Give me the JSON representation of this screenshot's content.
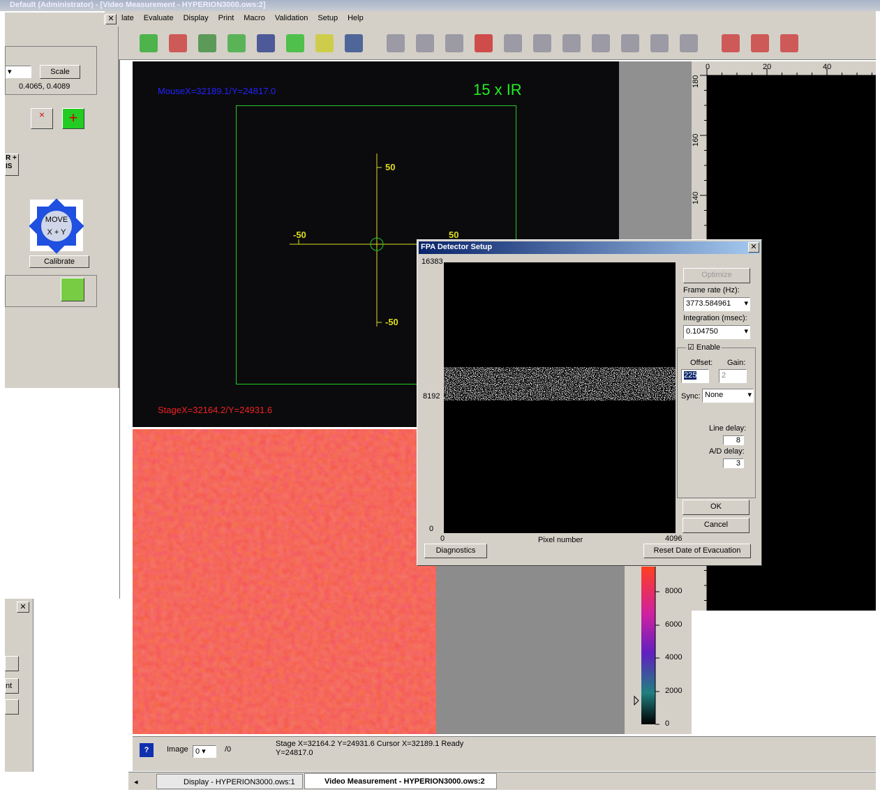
{
  "window": {
    "title": "Default (Administrator) - [Video Measurement - HYPERION3000.ows:2]"
  },
  "menu": [
    "late",
    "Evaluate",
    "Display",
    "Print",
    "Macro",
    "Validation",
    "Setup",
    "Help"
  ],
  "left_panel": {
    "scale_button": "Scale",
    "scale_value": "0.4065, 0.4089",
    "cut_label_1": "R +",
    "cut_label_2": "IS",
    "move_line_1": "MOVE",
    "move_line_2": "X + Y",
    "calibrate": "Calibrate",
    "cut_label_3": "nt"
  },
  "video": {
    "mouse": "MouseX=32189.1/Y=24817.0",
    "magnification": "15 x IR",
    "cross_top": "50",
    "cross_left": "-50",
    "cross_right": "50",
    "cross_bottom": "-50",
    "stage": "StageX=32164.2/Y=24931.6"
  },
  "ruler": {
    "top": [
      "0",
      "20",
      "40"
    ],
    "side": [
      "180",
      "160",
      "140"
    ]
  },
  "color_bar": [
    "8000",
    "6000",
    "4000",
    "2000",
    "0"
  ],
  "status": {
    "help": "?",
    "image_label": "Image",
    "image_value": "0",
    "image_count": "/0",
    "line_1": "Stage X=32164.2 Y=24931.6  Cursor X=32189.1  Ready",
    "line_2": "Y=24817.0"
  },
  "tabs": [
    "Display - HYPERION3000.ows:1",
    "Video Measurement - HYPERION3000.ows:2"
  ],
  "dialog": {
    "title": "FPA Detector Setup",
    "y_max": "16383",
    "y_mid": "8192",
    "y_min": "0",
    "x_min": "0",
    "x_label": "Pixel number",
    "x_max": "4096",
    "optimize": "Optimize",
    "frame_rate_label": "Frame rate (Hz):",
    "frame_rate": "3773.584961",
    "integration_label": "Integration (msec):",
    "integration": "0.104750",
    "enable": "Enable",
    "offset_label": "Offset:",
    "gain_label": "Gain:",
    "offset": "225",
    "gain": "2",
    "sync_label": "Sync:",
    "sync": "None",
    "line_delay_label": "Line delay:",
    "line_delay": "8",
    "ad_delay_label": "A/D delay:",
    "ad_delay": "3",
    "ok": "OK",
    "cancel": "Cancel",
    "diagnostics": "Diagnostics",
    "reset": "Reset Date of Evacuation"
  }
}
